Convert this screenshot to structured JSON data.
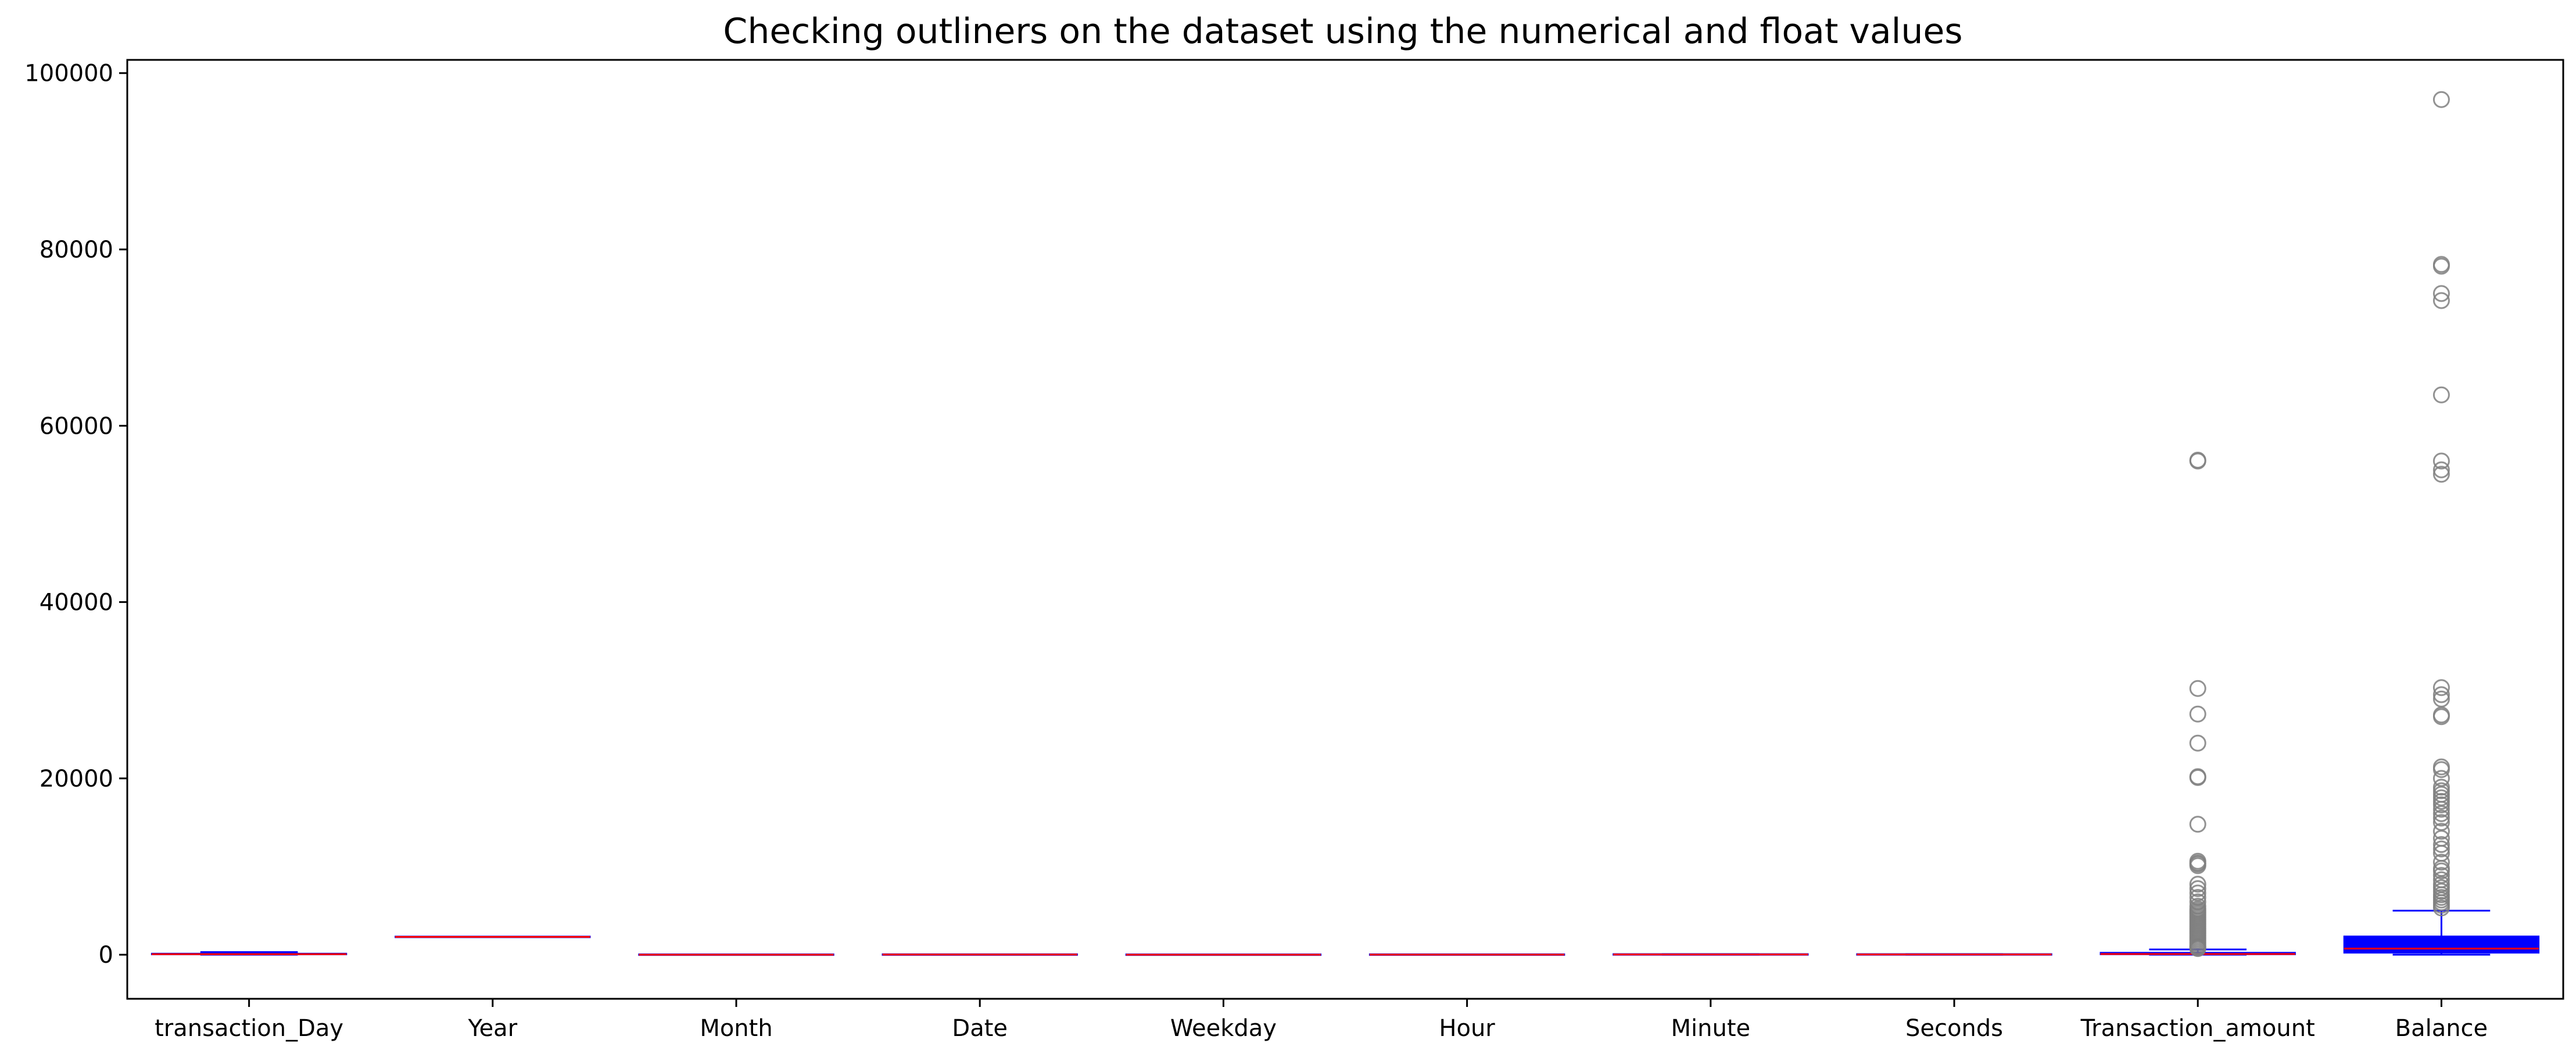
{
  "chart_data": {
    "type": "box",
    "title": "Checking outliners on the dataset using the numerical and float values",
    "xlabel": "",
    "ylabel": "",
    "ylim": [
      -5000,
      101500
    ],
    "yticks": [
      0,
      20000,
      40000,
      60000,
      80000,
      100000
    ],
    "grid": false,
    "legend": "none",
    "box_fill": "#0000ff",
    "whisker_color": "#0000ff",
    "median_color": "#ff0000",
    "outlier_color": "#7f7f7f",
    "categories": [
      "transaction_Day",
      "Year",
      "Month",
      "Date",
      "Weekday",
      "Hour",
      "Minute",
      "Seconds",
      "Transaction_amount",
      "Balance"
    ],
    "boxes": [
      {
        "label": "transaction_Day",
        "whislo": 0,
        "q1": 10,
        "med": 60,
        "q3": 150,
        "whishi": 300,
        "fliers": []
      },
      {
        "label": "Year",
        "whislo": 2023,
        "q1": 2023,
        "med": 2023,
        "q3": 2023,
        "whishi": 2023,
        "fliers": []
      },
      {
        "label": "Month",
        "whislo": 1,
        "q1": 3,
        "med": 5,
        "q3": 8,
        "whishi": 12,
        "fliers": []
      },
      {
        "label": "Date",
        "whislo": 1,
        "q1": 8,
        "med": 16,
        "q3": 23,
        "whishi": 31,
        "fliers": []
      },
      {
        "label": "Weekday",
        "whislo": 0,
        "q1": 1,
        "med": 3,
        "q3": 5,
        "whishi": 6,
        "fliers": []
      },
      {
        "label": "Hour",
        "whislo": 0,
        "q1": 6,
        "med": 12,
        "q3": 18,
        "whishi": 23,
        "fliers": []
      },
      {
        "label": "Minute",
        "whislo": 0,
        "q1": 15,
        "med": 30,
        "q3": 45,
        "whishi": 59,
        "fliers": []
      },
      {
        "label": "Seconds",
        "whislo": 0,
        "q1": 15,
        "med": 30,
        "q3": 45,
        "whishi": 59,
        "fliers": []
      },
      {
        "label": "Transaction_amount",
        "whislo": 0,
        "q1": 20,
        "med": 80,
        "q3": 250,
        "whishi": 600,
        "fliers": [
          56000,
          56100,
          30200,
          27300,
          24000,
          20200,
          20100,
          14800,
          10600,
          10400,
          10300,
          10100,
          8000,
          7500,
          7000,
          6500,
          6000,
          5500,
          5200,
          5000,
          4800,
          4600,
          4400,
          4200,
          4000,
          3800,
          3600,
          3400,
          3200,
          3000,
          2800,
          2600,
          2400,
          2200,
          2000,
          1800,
          1600,
          1400,
          1200,
          1000,
          900,
          800,
          700
        ]
      },
      {
        "label": "Balance",
        "whislo": 0,
        "q1": 200,
        "med": 700,
        "q3": 2100,
        "whishi": 5000,
        "fliers": [
          97000,
          78300,
          78100,
          75000,
          74200,
          63500,
          56000,
          55000,
          54500,
          30300,
          29500,
          29000,
          27200,
          27000,
          21300,
          21000,
          20000,
          19000,
          18600,
          18200,
          17800,
          17400,
          17000,
          16500,
          16000,
          15500,
          15000,
          14000,
          13200,
          12500,
          12000,
          11500,
          10500,
          9800,
          9500,
          9000,
          8500,
          8000,
          7600,
          7200,
          6800,
          6500,
          6200,
          5900,
          5600,
          5300
        ]
      }
    ]
  }
}
